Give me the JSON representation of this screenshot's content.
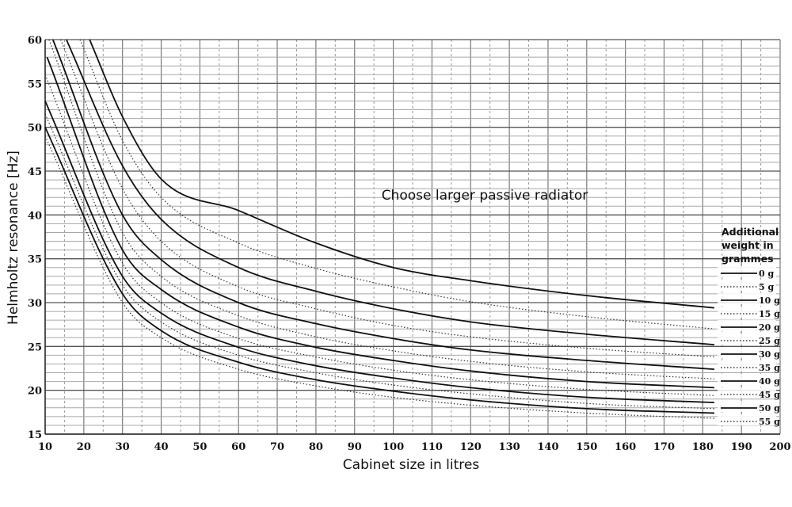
{
  "chart_data": {
    "type": "line",
    "title": "",
    "xlabel": "Cabinet size in litres",
    "ylabel": "Helmholtz resonance [Hz]",
    "xlim": [
      10,
      200
    ],
    "ylim": [
      15,
      60
    ],
    "x_ticks": [
      10,
      20,
      30,
      40,
      50,
      60,
      70,
      80,
      90,
      100,
      110,
      120,
      130,
      140,
      150,
      160,
      170,
      180,
      190,
      200
    ],
    "y_ticks": [
      15,
      20,
      25,
      30,
      35,
      40,
      45,
      50,
      55,
      60
    ],
    "grid": true,
    "annotation": "Choose larger passive radiator",
    "legend_title": [
      "Additional",
      "weight in",
      "grammes"
    ],
    "legend_position": "right",
    "x_range_of_curves": [
      10,
      183
    ],
    "series": [
      {
        "name": "0 g",
        "style": "solid",
        "x": [
          21.5,
          30,
          40,
          60,
          80,
          100,
          120,
          150,
          183
        ],
        "y": [
          60,
          51.2,
          44.1,
          40.5,
          36.8,
          34.0,
          32.5,
          30.8,
          29.4
        ]
      },
      {
        "name": "5 g",
        "style": "dotted",
        "x": [
          19,
          30,
          40,
          60,
          80,
          100,
          120,
          150,
          183
        ],
        "y": [
          60,
          48.5,
          42.0,
          36.8,
          33.9,
          31.8,
          30.1,
          28.4,
          27.0
        ]
      },
      {
        "name": "10 g",
        "style": "solid",
        "x": [
          15.5,
          30,
          40,
          60,
          80,
          100,
          120,
          150,
          183
        ],
        "y": [
          60,
          45.6,
          39.5,
          34.0,
          31.3,
          29.3,
          27.8,
          26.4,
          25.2
        ]
      },
      {
        "name": "15 g",
        "style": "dotted",
        "x": [
          14,
          30,
          40,
          60,
          80,
          100,
          120,
          150,
          183
        ],
        "y": [
          60,
          43.0,
          37.0,
          31.8,
          29.3,
          27.4,
          26.1,
          24.8,
          23.8
        ]
      },
      {
        "name": "20 g",
        "style": "solid",
        "x": [
          12,
          30,
          40,
          60,
          80,
          100,
          120,
          150,
          183
        ],
        "y": [
          60,
          40.0,
          34.9,
          30.0,
          27.6,
          25.9,
          24.6,
          23.4,
          22.4
        ]
      },
      {
        "name": "25 g",
        "style": "dotted",
        "x": [
          11,
          30,
          40,
          60,
          80,
          100,
          120,
          150,
          183
        ],
        "y": [
          60,
          38.0,
          33.0,
          28.5,
          26.1,
          24.5,
          23.3,
          22.1,
          21.3
        ]
      },
      {
        "name": "30 g",
        "style": "solid",
        "x": [
          10.5,
          30,
          40,
          60,
          80,
          100,
          120,
          150,
          183
        ],
        "y": [
          58,
          36.0,
          31.5,
          27.2,
          24.9,
          23.4,
          22.2,
          21.0,
          20.3
        ]
      },
      {
        "name": "35 g",
        "style": "dotted",
        "x": [
          10,
          30,
          40,
          60,
          80,
          100,
          120,
          150,
          183
        ],
        "y": [
          56,
          34.5,
          30.0,
          25.9,
          23.8,
          22.3,
          21.2,
          20.1,
          19.4
        ]
      },
      {
        "name": "40 g",
        "style": "solid",
        "x": [
          10,
          30,
          40,
          60,
          80,
          100,
          120,
          150,
          183
        ],
        "y": [
          53,
          33.0,
          28.8,
          24.9,
          22.8,
          21.4,
          20.3,
          19.2,
          18.6
        ]
      },
      {
        "name": "45 g",
        "style": "dotted",
        "x": [
          10,
          30,
          40,
          60,
          80,
          100,
          120,
          150,
          183
        ],
        "y": [
          51.5,
          32.0,
          27.8,
          24.0,
          22.0,
          20.6,
          19.6,
          18.5,
          17.9
        ]
      },
      {
        "name": "50 g",
        "style": "solid",
        "x": [
          10,
          30,
          40,
          60,
          80,
          100,
          120,
          150,
          183
        ],
        "y": [
          50,
          31.0,
          26.8,
          23.2,
          21.2,
          19.9,
          18.9,
          17.9,
          17.4
        ]
      },
      {
        "name": "55 g",
        "style": "dotted",
        "x": [
          10,
          30,
          40,
          60,
          80,
          100,
          120,
          150,
          183
        ],
        "y": [
          49,
          30.0,
          26.0,
          22.4,
          20.5,
          19.2,
          18.3,
          17.4,
          16.8
        ]
      }
    ]
  }
}
